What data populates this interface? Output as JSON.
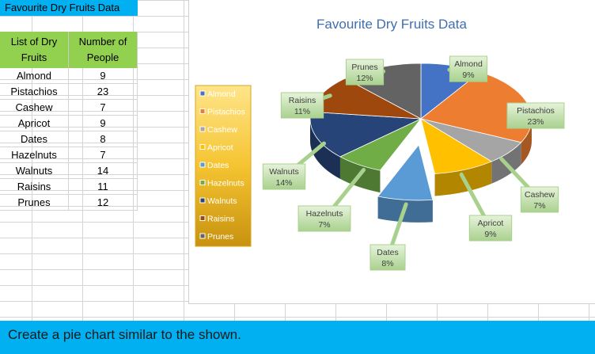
{
  "sheet": {
    "title": "Favourite  Dry Fruits Data",
    "col1_header": "List of Dry Fruits",
    "col2_header": "Number of People",
    "rows": [
      {
        "name": "Almond",
        "value": "9"
      },
      {
        "name": "Pistachios",
        "value": "23"
      },
      {
        "name": "Cashew",
        "value": "7"
      },
      {
        "name": "Apricot",
        "value": "9"
      },
      {
        "name": "Dates",
        "value": "8"
      },
      {
        "name": "Hazelnuts",
        "value": "7"
      },
      {
        "name": "Walnuts",
        "value": "14"
      },
      {
        "name": "Raisins",
        "value": "11"
      },
      {
        "name": "Prunes",
        "value": "12"
      }
    ]
  },
  "footer": {
    "instruction": "Create a pie chart similar to the shown."
  },
  "chart_data": {
    "type": "pie",
    "title": "Favourite  Dry Fruits Data",
    "legend_position": "left",
    "slices": [
      {
        "label": "Almond",
        "value": 9,
        "percent": "9%",
        "color": "#4472c4"
      },
      {
        "label": "Pistachios",
        "value": 23,
        "percent": "23%",
        "color": "#ed7d31"
      },
      {
        "label": "Cashew",
        "value": 7,
        "percent": "7%",
        "color": "#a5a5a5"
      },
      {
        "label": "Apricot",
        "value": 9,
        "percent": "9%",
        "color": "#ffc000"
      },
      {
        "label": "Dates",
        "value": 8,
        "percent": "8%",
        "color": "#5b9bd5",
        "exploded": true
      },
      {
        "label": "Hazelnuts",
        "value": 7,
        "percent": "7%",
        "color": "#70ad47"
      },
      {
        "label": "Walnuts",
        "value": 14,
        "percent": "14%",
        "color": "#264478"
      },
      {
        "label": "Raisins",
        "value": 11,
        "percent": "11%",
        "color": "#9e480e"
      },
      {
        "label": "Prunes",
        "value": 12,
        "percent": "12%",
        "color": "#636363"
      }
    ]
  }
}
